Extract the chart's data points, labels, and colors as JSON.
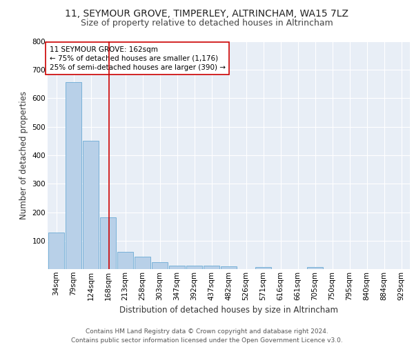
{
  "title1": "11, SEYMOUR GROVE, TIMPERLEY, ALTRINCHAM, WA15 7LZ",
  "title2": "Size of property relative to detached houses in Altrincham",
  "xlabel": "Distribution of detached houses by size in Altrincham",
  "ylabel": "Number of detached properties",
  "categories": [
    "34sqm",
    "79sqm",
    "124sqm",
    "168sqm",
    "213sqm",
    "258sqm",
    "303sqm",
    "347sqm",
    "392sqm",
    "437sqm",
    "482sqm",
    "526sqm",
    "571sqm",
    "616sqm",
    "661sqm",
    "705sqm",
    "750sqm",
    "795sqm",
    "840sqm",
    "884sqm",
    "929sqm"
  ],
  "values": [
    128,
    658,
    452,
    183,
    60,
    43,
    25,
    12,
    13,
    11,
    9,
    0,
    8,
    0,
    0,
    8,
    0,
    0,
    0,
    0,
    0
  ],
  "bar_color": "#b8d0e8",
  "bar_edgecolor": "#6aaad4",
  "vline_color": "#cc0000",
  "annotation_text": "11 SEYMOUR GROVE: 162sqm\n← 75% of detached houses are smaller (1,176)\n25% of semi-detached houses are larger (390) →",
  "annotation_box_color": "#ffffff",
  "annotation_box_edgecolor": "#cc0000",
  "footer": "Contains HM Land Registry data © Crown copyright and database right 2024.\nContains public sector information licensed under the Open Government Licence v3.0.",
  "ylim": [
    0,
    800
  ],
  "yticks": [
    0,
    100,
    200,
    300,
    400,
    500,
    600,
    700,
    800
  ],
  "background_color": "#e8eef6",
  "grid_color": "#ffffff",
  "title1_fontsize": 10,
  "title2_fontsize": 9,
  "xlabel_fontsize": 8.5,
  "ylabel_fontsize": 8.5,
  "tick_fontsize": 7.5,
  "annotation_fontsize": 7.5,
  "footer_fontsize": 6.5
}
